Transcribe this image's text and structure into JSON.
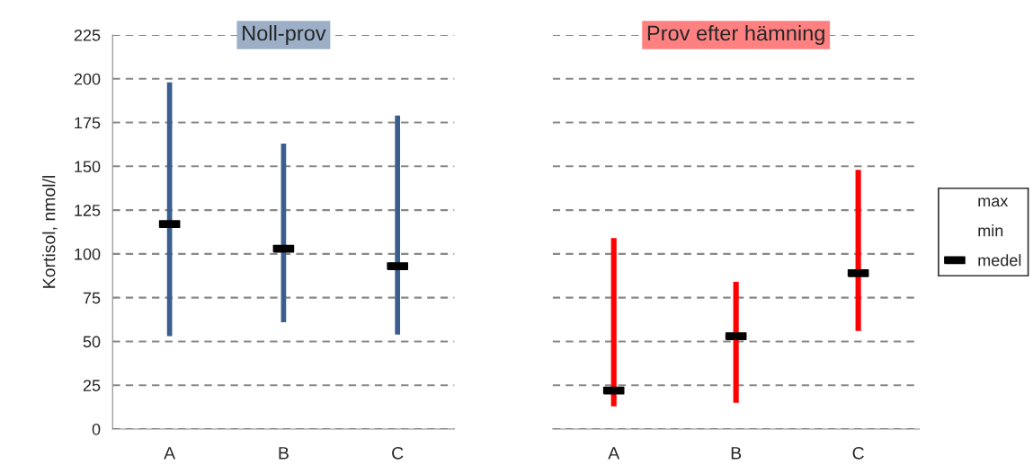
{
  "chart_data": [
    {
      "type": "bar",
      "title": "Noll-prov",
      "ylabel": "Kortisol, nmol/l",
      "categories": [
        "A",
        "B",
        "C"
      ],
      "ylim": [
        0,
        225
      ],
      "yticks": [
        0,
        25,
        50,
        75,
        100,
        125,
        150,
        175,
        200,
        225
      ],
      "grid": "y",
      "series": [
        {
          "color": "#3a5f8f",
          "base": [
            53,
            61,
            54
          ],
          "values": [
            145,
            102,
            125
          ]
        },
        {
          "type": "scatter",
          "color": "#000000",
          "values": [
            117,
            103,
            93
          ]
        }
      ]
    },
    {
      "type": "bar",
      "title": "Prov efter hämning",
      "categories": [
        "A",
        "B",
        "C"
      ],
      "ylim": [
        0,
        225
      ],
      "yticks": [
        0,
        25,
        50,
        75,
        100,
        125,
        150,
        175,
        200,
        225
      ],
      "tick_labels": "x",
      "grid": "y",
      "legend": "right",
      "annotations": [
        "max",
        "min"
      ],
      "series": [
        {
          "color": "#ff0000",
          "base": [
            13,
            15,
            56
          ],
          "values": [
            96,
            69,
            92
          ]
        },
        {
          "name": "medel",
          "type": "scatter",
          "color": "#000000",
          "values": [
            22,
            53,
            89
          ]
        }
      ]
    }
  ]
}
